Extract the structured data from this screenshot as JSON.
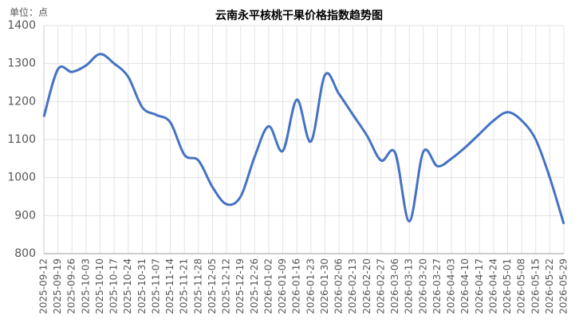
{
  "chart_data": {
    "type": "line",
    "title": "云南永平核桃干果价格指数趋势图",
    "unit_label": "单位：点",
    "categories": [
      "2025-09-12",
      "2025-09-19",
      "2025-09-26",
      "2025-10-03",
      "2025-10-10",
      "2025-10-17",
      "2025-10-24",
      "2025-10-31",
      "2025-11-07",
      "2025-11-14",
      "2025-11-21",
      "2025-11-28",
      "2025-12-05",
      "2025-12-12",
      "2025-12-19",
      "2025-12-26",
      "2026-01-02",
      "2026-01-09",
      "2026-01-16",
      "2026-01-23",
      "2026-01-30",
      "2026-02-06",
      "2026-02-13",
      "2026-02-20",
      "2026-02-27",
      "2026-03-06",
      "2026-03-13",
      "2026-03-20",
      "2026-03-27",
      "2026-04-03",
      "2026-04-10",
      "2026-04-17",
      "2026-04-24",
      "2026-05-01",
      "2026-05-08",
      "2026-05-15",
      "2026-05-22",
      "2026-05-29"
    ],
    "series": [
      {
        "color": "#4472c4",
        "values": [
          1160,
          1285,
          1278,
          1295,
          1325,
          1300,
          1265,
          1185,
          1165,
          1145,
          1060,
          1045,
          975,
          930,
          950,
          1055,
          1135,
          1070,
          1205,
          1095,
          1270,
          1220,
          1165,
          1110,
          1045,
          1065,
          885,
          1068,
          1030,
          1050,
          1080,
          1115,
          1150,
          1172,
          1150,
          1100,
          1000,
          878
        ]
      }
    ],
    "ylim": [
      800,
      1400
    ],
    "yticks": [
      800,
      900,
      1000,
      1100,
      1200,
      1300,
      1400
    ],
    "grid": true
  }
}
